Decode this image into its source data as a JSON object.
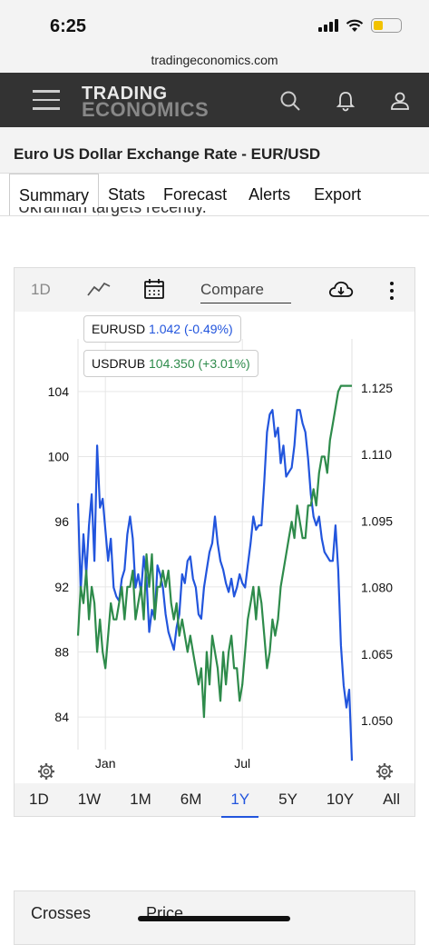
{
  "status": {
    "time": "6:25"
  },
  "browser": {
    "url": "tradingeconomics.com"
  },
  "header": {
    "logo_top": "TRADING",
    "logo_bottom": "ECONOMICS"
  },
  "page": {
    "title": "Euro US Dollar Exchange Rate - EUR/USD",
    "cut_text": "Ukrainian targets recently."
  },
  "tabs": [
    "Summary",
    "Stats",
    "Forecast",
    "Alerts",
    "Export"
  ],
  "chart_toolbar": {
    "period": "1D",
    "compare_label": "Compare"
  },
  "legend": [
    {
      "symbol": "EURUSD",
      "value": "1.042 (-0.49%)",
      "color": "#2255dd"
    },
    {
      "symbol": "USDRUB",
      "value": "104.350 (+3.01%)",
      "color": "#2e8b4b"
    }
  ],
  "ranges": [
    "1D",
    "1W",
    "1M",
    "6M",
    "1Y",
    "5Y",
    "10Y",
    "All"
  ],
  "active_range": "1Y",
  "bottom_table": {
    "col1": "Crosses",
    "col2": "Price"
  },
  "chart_data": {
    "type": "line",
    "x_ticks": [
      "Jan",
      "Jul"
    ],
    "left_axis": {
      "ticks": [
        104,
        100,
        96,
        92,
        88,
        84
      ],
      "range": [
        82,
        106
      ],
      "series": "USDRUB"
    },
    "right_axis": {
      "ticks": [
        "1.125",
        "1.110",
        "1.095",
        "1.080",
        "1.065",
        "1.050"
      ],
      "range": [
        1.0435,
        1.1315
      ],
      "series": "EURUSD"
    },
    "grid": true,
    "series": [
      {
        "name": "EURUSD",
        "color": "#2255dd",
        "axis": "right",
        "x": [
          0,
          0.01,
          0.02,
          0.03,
          0.04,
          0.05,
          0.06,
          0.07,
          0.08,
          0.09,
          0.1,
          0.11,
          0.12,
          0.13,
          0.14,
          0.15,
          0.16,
          0.17,
          0.18,
          0.19,
          0.2,
          0.21,
          0.22,
          0.23,
          0.24,
          0.25,
          0.26,
          0.27,
          0.28,
          0.29,
          0.3,
          0.31,
          0.32,
          0.33,
          0.34,
          0.35,
          0.36,
          0.37,
          0.38,
          0.39,
          0.4,
          0.41,
          0.42,
          0.43,
          0.44,
          0.45,
          0.46,
          0.47,
          0.48,
          0.49,
          0.5,
          0.51,
          0.52,
          0.53,
          0.54,
          0.55,
          0.56,
          0.57,
          0.58,
          0.59,
          0.6,
          0.61,
          0.62,
          0.63,
          0.64,
          0.65,
          0.66,
          0.67,
          0.68,
          0.69,
          0.7,
          0.71,
          0.72,
          0.73,
          0.74,
          0.75,
          0.76,
          0.77,
          0.78,
          0.79,
          0.8,
          0.81,
          0.82,
          0.83,
          0.84,
          0.85,
          0.86,
          0.87,
          0.88,
          0.89,
          0.9,
          0.91,
          0.92,
          0.93,
          0.94,
          0.95,
          0.96,
          0.97,
          0.98,
          0.99,
          1
        ],
        "y": [
          1.099,
          1.079,
          1.092,
          1.083,
          1.094,
          1.101,
          1.086,
          1.112,
          1.098,
          1.1,
          1.093,
          1.086,
          1.091,
          1.08,
          1.078,
          1.077,
          1.082,
          1.084,
          1.092,
          1.096,
          1.091,
          1.08,
          1.083,
          1.079,
          1.087,
          1.082,
          1.07,
          1.075,
          1.073,
          1.085,
          1.083,
          1.08,
          1.074,
          1.07,
          1.068,
          1.066,
          1.071,
          1.074,
          1.083,
          1.081,
          1.086,
          1.087,
          1.082,
          1.08,
          1.074,
          1.073,
          1.08,
          1.084,
          1.088,
          1.09,
          1.096,
          1.09,
          1.086,
          1.084,
          1.081,
          1.079,
          1.082,
          1.078,
          1.08,
          1.083,
          1.081,
          1.08,
          1.085,
          1.09,
          1.096,
          1.093,
          1.094,
          1.094,
          1.104,
          1.115,
          1.119,
          1.12,
          1.114,
          1.116,
          1.108,
          1.112,
          1.105,
          1.106,
          1.107,
          1.112,
          1.12,
          1.12,
          1.117,
          1.115,
          1.109,
          1.101,
          1.096,
          1.094,
          1.096,
          1.091,
          1.088,
          1.087,
          1.086,
          1.086,
          1.094,
          1.084,
          1.067,
          1.058,
          1.053,
          1.057,
          1.041
        ]
      },
      {
        "name": "USDRUB",
        "color": "#2e8b4b",
        "axis": "left",
        "x": [
          0,
          0.01,
          0.02,
          0.03,
          0.04,
          0.05,
          0.06,
          0.07,
          0.08,
          0.09,
          0.1,
          0.11,
          0.12,
          0.13,
          0.14,
          0.15,
          0.16,
          0.17,
          0.18,
          0.19,
          0.2,
          0.21,
          0.22,
          0.23,
          0.24,
          0.25,
          0.26,
          0.27,
          0.28,
          0.29,
          0.3,
          0.31,
          0.32,
          0.33,
          0.34,
          0.35,
          0.36,
          0.37,
          0.38,
          0.39,
          0.4,
          0.41,
          0.42,
          0.43,
          0.44,
          0.45,
          0.46,
          0.47,
          0.48,
          0.49,
          0.5,
          0.51,
          0.52,
          0.53,
          0.54,
          0.55,
          0.56,
          0.57,
          0.58,
          0.59,
          0.6,
          0.61,
          0.62,
          0.63,
          0.64,
          0.65,
          0.66,
          0.67,
          0.68,
          0.69,
          0.7,
          0.71,
          0.72,
          0.73,
          0.74,
          0.75,
          0.76,
          0.77,
          0.78,
          0.79,
          0.8,
          0.81,
          0.82,
          0.83,
          0.84,
          0.85,
          0.86,
          0.87,
          0.88,
          0.89,
          0.9,
          0.91,
          0.92,
          0.93,
          0.94,
          0.95,
          0.96,
          0.97,
          0.98,
          0.99,
          1
        ],
        "y": [
          89,
          92,
          91,
          93,
          90,
          92,
          91,
          88,
          90,
          88,
          87,
          89,
          91,
          90,
          90,
          91,
          92,
          90,
          92,
          92,
          93,
          90,
          91,
          92,
          90,
          94,
          92,
          94,
          90,
          92,
          92,
          93,
          92,
          93,
          91,
          90,
          91,
          89,
          90,
          89,
          88,
          89,
          88,
          87,
          86,
          87,
          84,
          88,
          86,
          89,
          88,
          87,
          85,
          88,
          86,
          88,
          89,
          87,
          87,
          85,
          86,
          88,
          90,
          91,
          92,
          90,
          92,
          91,
          89,
          87,
          88,
          90,
          89,
          90,
          92,
          93,
          94,
          95,
          96,
          95,
          97,
          96,
          95,
          95,
          97,
          97,
          98,
          97,
          99,
          100,
          100,
          99,
          101,
          102,
          103,
          104,
          104.35,
          104.35,
          104.35,
          104.35,
          104.35
        ]
      }
    ]
  }
}
